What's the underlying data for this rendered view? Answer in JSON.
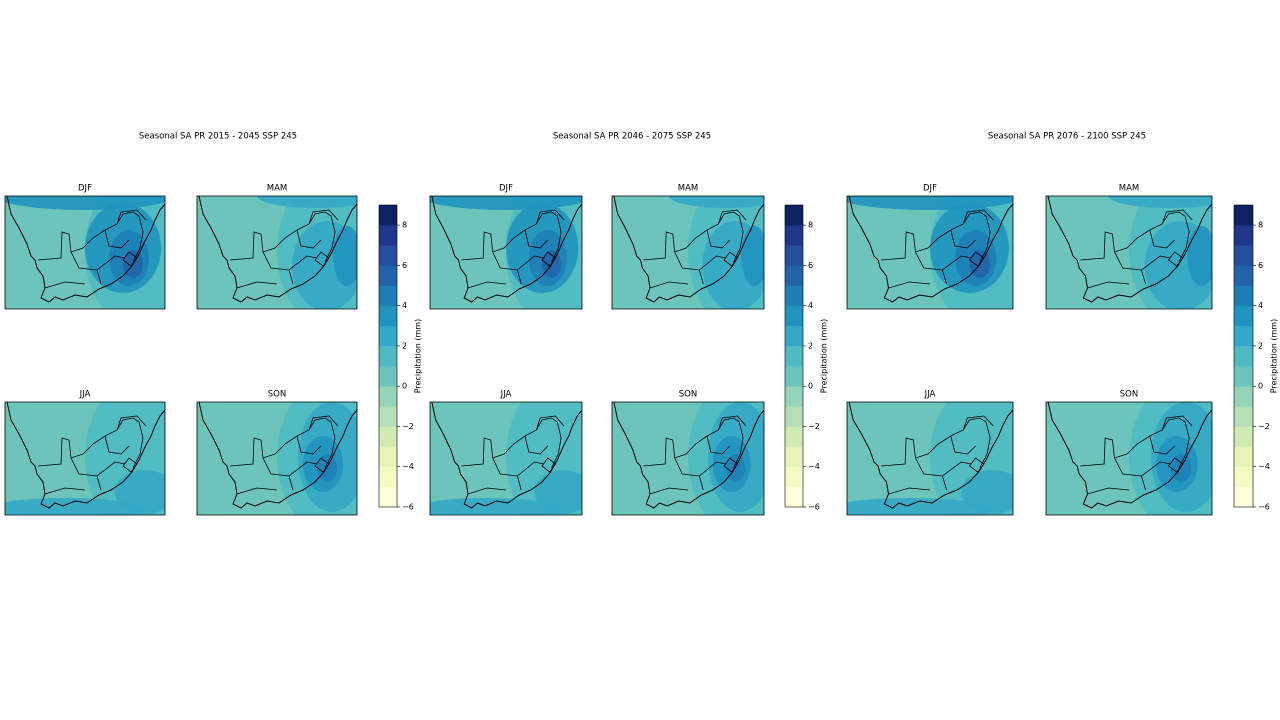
{
  "figures": [
    {
      "title": "Seasonal SA PR 2015 - 2045 SSP 245",
      "panels": [
        "DJF",
        "MAM",
        "JJA",
        "SON"
      ],
      "colorbar": {
        "label": "Precipitation (mm)",
        "lim": [
          -6,
          9
        ],
        "ticks": [
          {
            "value": -6,
            "label": "−6"
          },
          {
            "value": -4,
            "label": "−4"
          },
          {
            "value": -2,
            "label": "−2"
          },
          0,
          2,
          4,
          6,
          8
        ],
        "colors": [
          "#ffffd9",
          "#f4fbc2",
          "#e6f5b5",
          "#d0ecb3",
          "#b3e0b6",
          "#94d4b9",
          "#6cc5bb",
          "#4fbac3",
          "#34a9c7",
          "#2094c0",
          "#1e7fb8",
          "#2264aa",
          "#244f9e",
          "#20368b",
          "#0d2163"
        ]
      }
    },
    {
      "title": "Seasonal SA PR 2046 - 2075 SSP 245",
      "panels": [
        "DJF",
        "MAM",
        "JJA",
        "SON"
      ],
      "colorbar": {
        "label": "Precipitation (mm)",
        "lim": [
          -6,
          9
        ],
        "ticks": [
          {
            "value": -6,
            "label": "−6"
          },
          {
            "value": -4,
            "label": "−4"
          },
          {
            "value": -2,
            "label": "−2"
          },
          0,
          2,
          4,
          6,
          8
        ],
        "colors": [
          "#ffffd9",
          "#f4fbc2",
          "#e6f5b5",
          "#d0ecb3",
          "#b3e0b6",
          "#94d4b9",
          "#6cc5bb",
          "#4fbac3",
          "#34a9c7",
          "#2094c0",
          "#1e7fb8",
          "#2264aa",
          "#244f9e",
          "#20368b",
          "#0d2163"
        ]
      }
    },
    {
      "title": "Seasonal SA PR 2076 - 2100 SSP 245",
      "panels": [
        "DJF",
        "MAM",
        "JJA",
        "SON"
      ],
      "colorbar": {
        "label": "Precipitation (mm)",
        "lim": [
          -6,
          9
        ],
        "ticks": [
          {
            "value": -6,
            "label": "−6"
          },
          {
            "value": -4,
            "label": "−4"
          },
          {
            "value": -2,
            "label": "−2"
          },
          0,
          2,
          4,
          6,
          8
        ],
        "colors": [
          "#ffffd9",
          "#f4fbc2",
          "#e6f5b5",
          "#d0ecb3",
          "#b3e0b6",
          "#94d4b9",
          "#6cc5bb",
          "#4fbac3",
          "#34a9c7",
          "#2094c0",
          "#1e7fb8",
          "#2264aa",
          "#244f9e",
          "#20368b",
          "#0d2163"
        ]
      }
    }
  ]
}
